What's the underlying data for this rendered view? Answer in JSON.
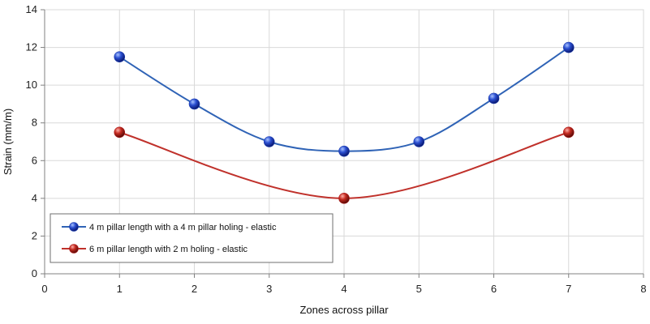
{
  "chart_data": {
    "type": "line",
    "title": "",
    "xlabel": "Zones across pillar",
    "ylabel": "Strain (mm/m)",
    "xlim": [
      0,
      8
    ],
    "ylim": [
      0,
      14
    ],
    "xticks": [
      0,
      1,
      2,
      3,
      4,
      5,
      6,
      7,
      8
    ],
    "yticks": [
      0,
      2,
      4,
      6,
      8,
      10,
      12,
      14
    ],
    "grid": true,
    "legend_position": "bottom-left",
    "series": [
      {
        "name": "4 m pillar length with a 4 m pillar holing - elastic",
        "color": "#2f63b6",
        "marker_color": "#1f3fb0",
        "x": [
          1,
          2,
          3,
          4,
          5,
          6,
          7
        ],
        "y": [
          11.5,
          9.0,
          7.0,
          6.5,
          7.0,
          9.3,
          12.0
        ],
        "marker_indices": [
          0,
          1,
          2,
          3,
          4,
          5,
          6
        ]
      },
      {
        "name": "6 m pillar length with 2 m holing - elastic",
        "color": "#c0312b",
        "marker_color": "#b01e1e",
        "x": [
          1,
          4,
          7
        ],
        "y": [
          7.5,
          4.0,
          7.5
        ],
        "marker_indices": [
          0,
          1,
          2
        ]
      }
    ]
  }
}
